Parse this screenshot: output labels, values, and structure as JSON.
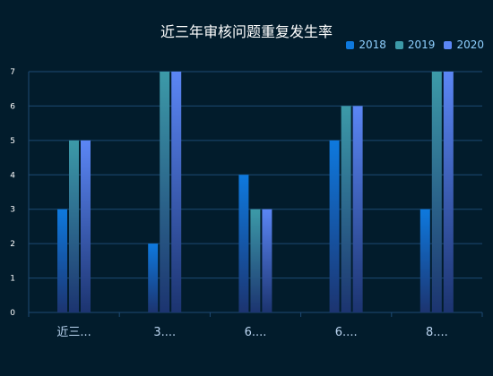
{
  "chart_data": {
    "type": "bar",
    "title": "近三年审核问题重复发生率",
    "categories": [
      "近三...",
      "3....",
      "6....",
      "6....",
      "8...."
    ],
    "series": [
      {
        "name": "2018",
        "values": [
          3,
          2,
          4,
          5,
          3
        ],
        "color": "#0e79de"
      },
      {
        "name": "2019",
        "values": [
          5,
          7,
          3,
          6,
          7
        ],
        "color": "#3c9aa8"
      },
      {
        "name": "2020",
        "values": [
          5,
          7,
          3,
          6,
          7
        ],
        "color": "#5b86f5"
      }
    ],
    "ylim": [
      0,
      7
    ],
    "yticks": [
      0,
      1,
      2,
      3,
      4,
      5,
      6,
      7
    ],
    "grid": true,
    "legend_position": "top-right",
    "colors": {
      "background": "#021c2c",
      "grid": "#1d4a73",
      "axis_text": "#ffffff",
      "category_text": "#bcd6f2",
      "legend_text": "#8fd0ff"
    }
  }
}
